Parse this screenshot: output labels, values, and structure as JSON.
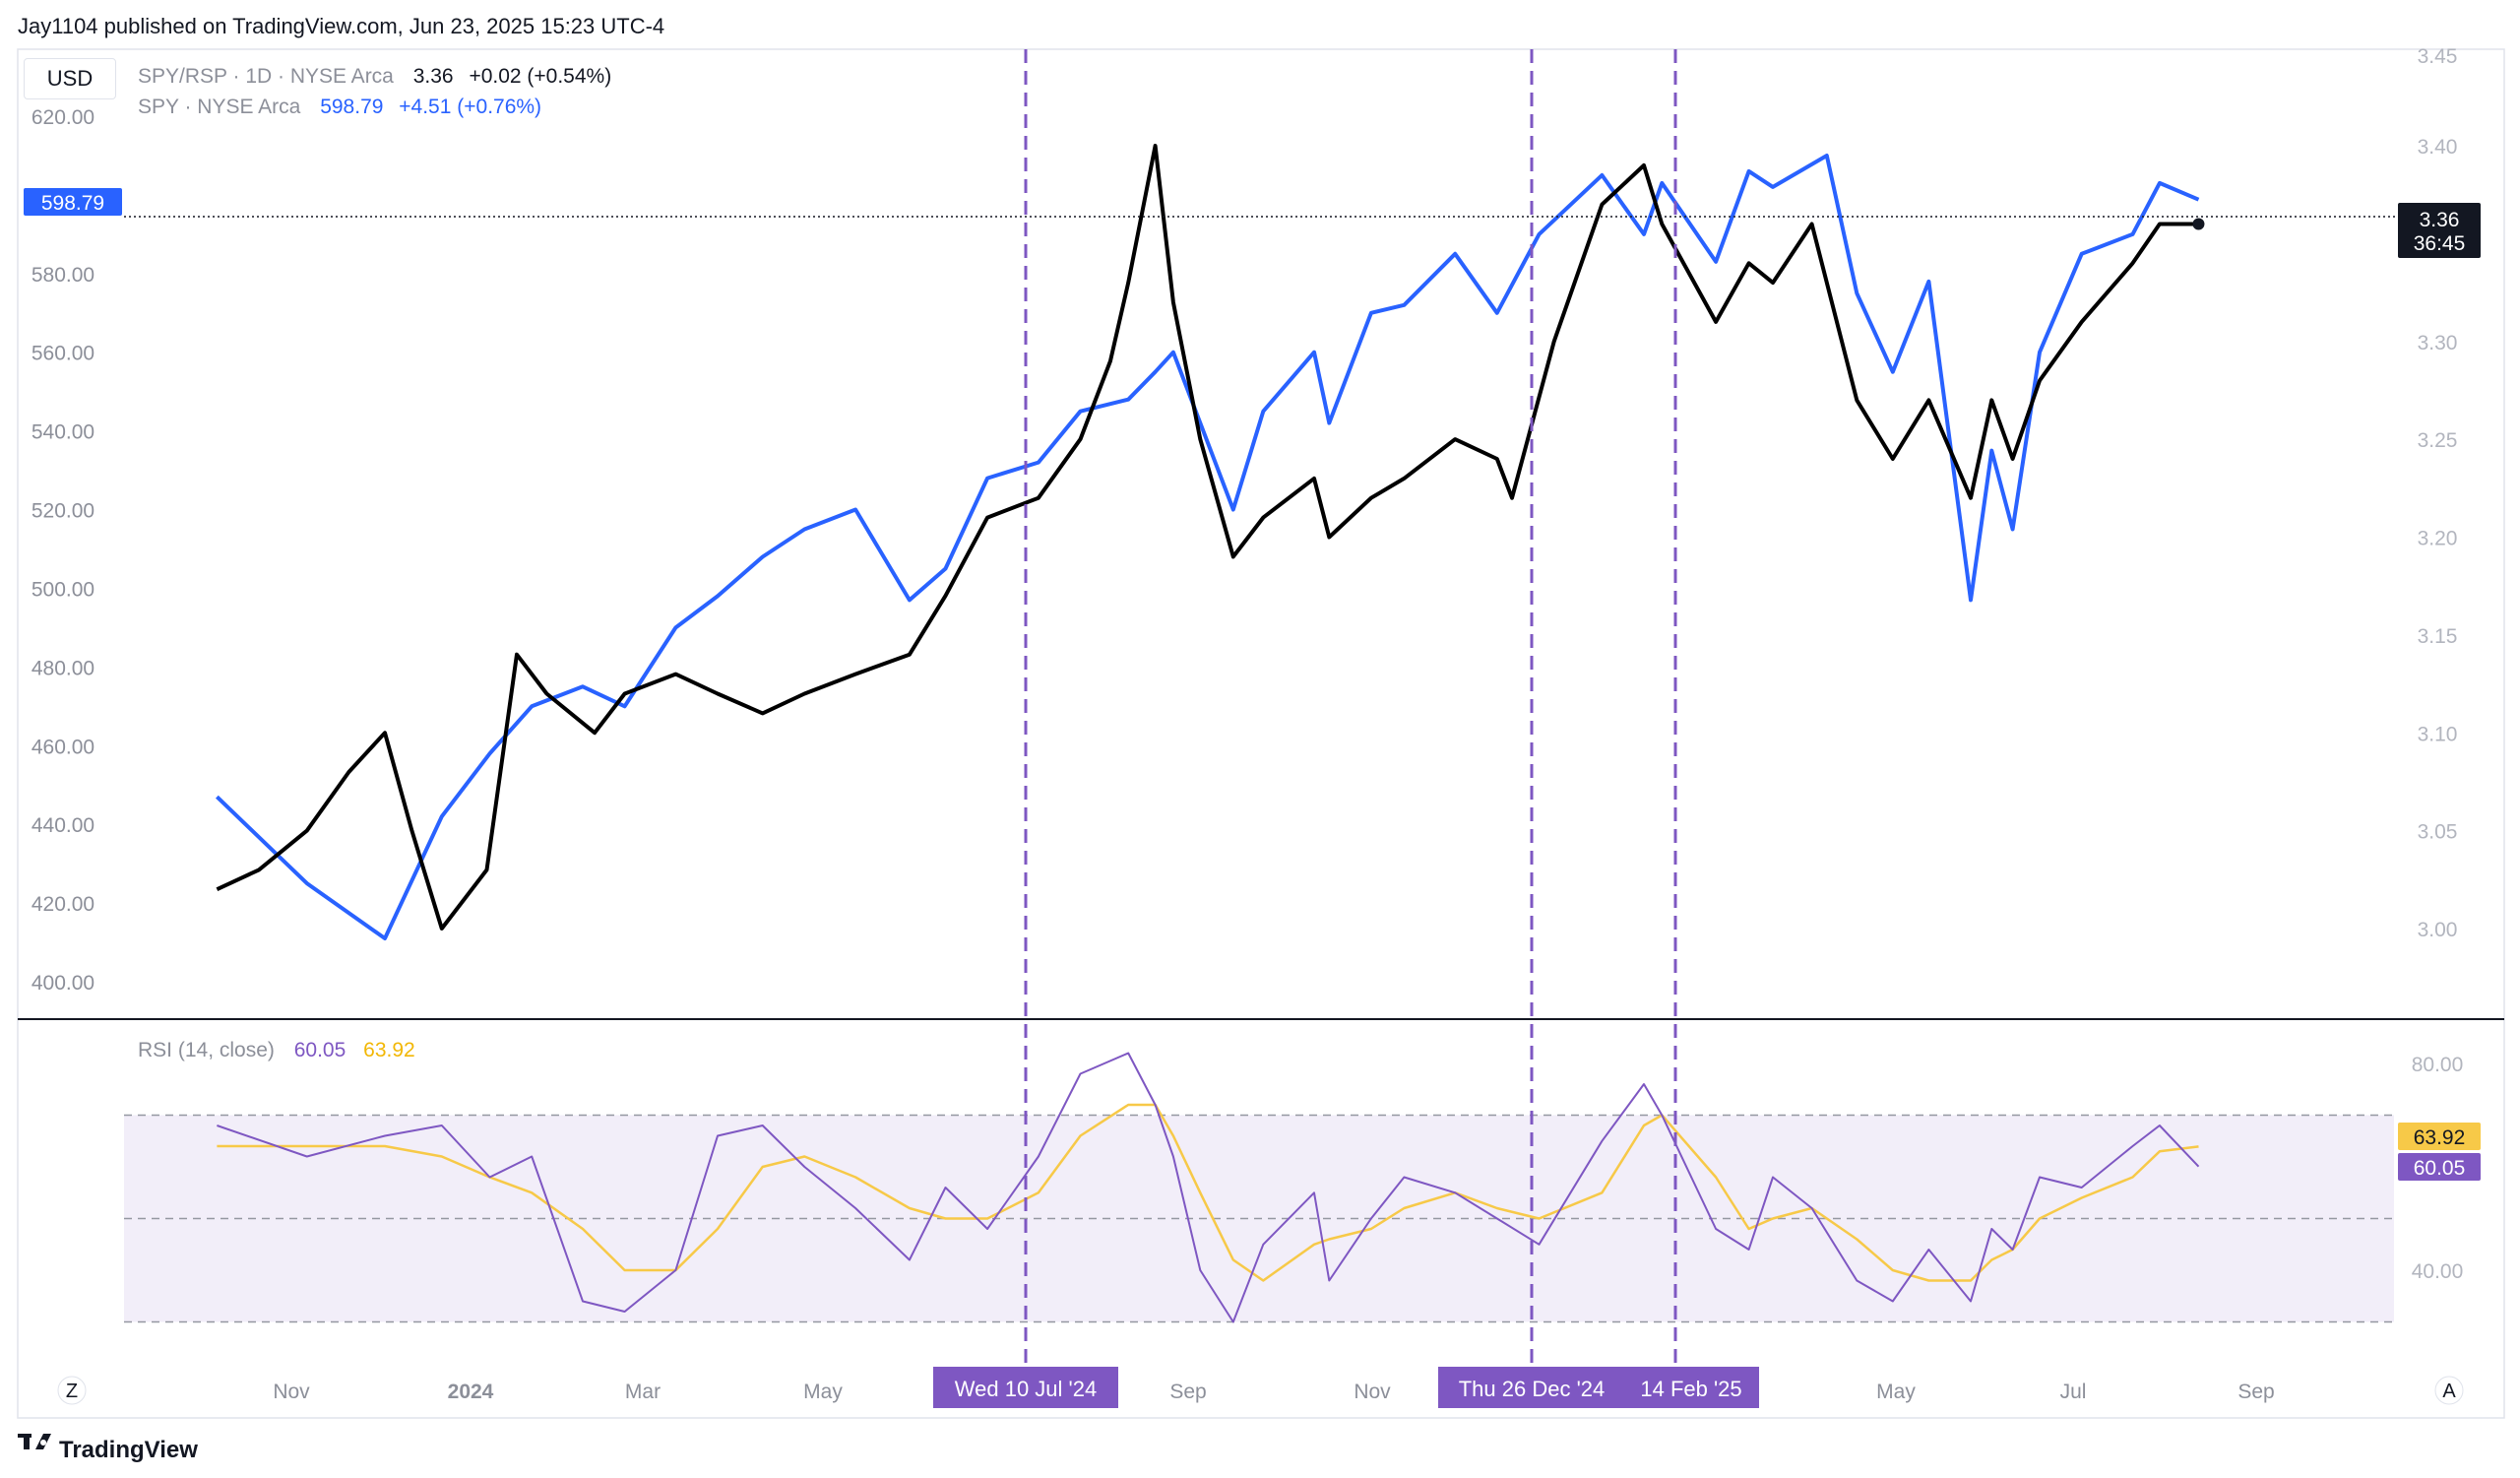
{
  "header": {
    "publisher": "Jay1104 published on TradingView.com, Jun 23, 2025 15:23 UTC-4"
  },
  "currency_button": "USD",
  "legend": {
    "main_symbol": "SPY/RSP · 1D · NYSE Arca",
    "main_value": "3.36",
    "main_change": "+0.02 (+0.54%)",
    "overlay_symbol": "SPY · NYSE Arca",
    "overlay_value": "598.79",
    "overlay_change": "+4.51 (+0.76%)"
  },
  "rsi_legend": {
    "title": "RSI (14, close)",
    "rsi_value": "60.05",
    "ma_value": "63.92"
  },
  "price_tag_left": "598.79",
  "price_tag_right": {
    "value": "3.36",
    "countdown": "36:45"
  },
  "rsi_tags": {
    "ma": "63.92",
    "rsi": "60.05"
  },
  "date_markers": [
    "Wed 10 Jul '24",
    "Thu 26 Dec '24",
    "14 Feb '25"
  ],
  "footer": {
    "brand": "TradingView"
  },
  "nav_buttons": {
    "left": "Z",
    "right": "A"
  },
  "colors": {
    "spy": "#2962ff",
    "ratio": "#000000",
    "rsi": "#7e57c2",
    "rsi_ma": "#f7c948",
    "marker": "#7e57c2",
    "marker_label_bg": "#7e57c2",
    "rsi_band": "#ede7f6"
  },
  "chart_data": [
    {
      "type": "line",
      "title": "SPY/RSP · 1D · NYSE Arca",
      "left_axis_ticks": [
        "620.00",
        "580.00",
        "560.00",
        "540.00",
        "520.00",
        "500.00",
        "480.00",
        "460.00",
        "440.00",
        "420.00",
        "400.00"
      ],
      "right_axis_ticks": [
        "3.45",
        "3.40",
        "3.30",
        "3.25",
        "3.20",
        "3.15",
        "3.10",
        "3.05",
        "3.00"
      ],
      "x_ticks": [
        "Nov",
        "2024",
        "Mar",
        "May",
        "Sep",
        "Nov",
        "May",
        "Jul",
        "Sep"
      ],
      "x_range": [
        "Aug '23",
        "Oct '25"
      ],
      "left_ylim": [
        392,
        630
      ],
      "right_ylim": [
        2.955,
        3.455
      ],
      "series": [
        {
          "name": "SPY · NYSE Arca",
          "axis": "left",
          "x": [
            "2023-09-01",
            "2023-10-01",
            "2023-10-27",
            "2023-11-15",
            "2023-12-01",
            "2023-12-15",
            "2024-01-01",
            "2024-01-15",
            "2024-02-01",
            "2024-02-15",
            "2024-03-01",
            "2024-03-15",
            "2024-04-01",
            "2024-04-19",
            "2024-05-01",
            "2024-05-15",
            "2024-06-01",
            "2024-06-15",
            "2024-07-01",
            "2024-07-10",
            "2024-07-16",
            "2024-07-25",
            "2024-08-05",
            "2024-08-15",
            "2024-09-01",
            "2024-09-06",
            "2024-09-20",
            "2024-10-01",
            "2024-10-18",
            "2024-11-01",
            "2024-11-15",
            "2024-12-06",
            "2024-12-20",
            "2024-12-26",
            "2025-01-13",
            "2025-01-24",
            "2025-02-01",
            "2025-02-19",
            "2025-03-01",
            "2025-03-13",
            "2025-03-25",
            "2025-04-08",
            "2025-04-15",
            "2025-04-22",
            "2025-05-01",
            "2025-05-15",
            "2025-06-01",
            "2025-06-10",
            "2025-06-23"
          ],
          "values": [
            447,
            425,
            411,
            442,
            458,
            470,
            475,
            470,
            490,
            498,
            508,
            515,
            520,
            497,
            505,
            528,
            532,
            545,
            548,
            555,
            560,
            542,
            520,
            545,
            560,
            542,
            570,
            572,
            585,
            570,
            590,
            605,
            590,
            603,
            583,
            606,
            602,
            610,
            575,
            555,
            578,
            497,
            535,
            515,
            560,
            585,
            590,
            603,
            598.79
          ]
        },
        {
          "name": "SPY/RSP · 1D · NYSE Arca",
          "axis": "right",
          "x": [
            "2023-09-01",
            "2023-09-15",
            "2023-10-01",
            "2023-10-15",
            "2023-10-27",
            "2023-11-05",
            "2023-11-15",
            "2023-11-30",
            "2023-12-10",
            "2023-12-20",
            "2024-01-05",
            "2024-01-15",
            "2024-02-01",
            "2024-02-15",
            "2024-03-01",
            "2024-03-15",
            "2024-04-01",
            "2024-04-19",
            "2024-05-01",
            "2024-05-15",
            "2024-06-01",
            "2024-06-15",
            "2024-06-25",
            "2024-07-01",
            "2024-07-10",
            "2024-07-16",
            "2024-07-25",
            "2024-08-05",
            "2024-08-15",
            "2024-09-01",
            "2024-09-06",
            "2024-09-20",
            "2024-10-01",
            "2024-10-18",
            "2024-11-01",
            "2024-11-06",
            "2024-11-20",
            "2024-12-06",
            "2024-12-20",
            "2024-12-26",
            "2025-01-13",
            "2025-01-24",
            "2025-02-01",
            "2025-02-14",
            "2025-03-01",
            "2025-03-13",
            "2025-03-25",
            "2025-04-08",
            "2025-04-15",
            "2025-04-22",
            "2025-05-01",
            "2025-05-15",
            "2025-06-01",
            "2025-06-10",
            "2025-06-23"
          ],
          "values": [
            3.02,
            3.03,
            3.05,
            3.08,
            3.1,
            3.05,
            3.0,
            3.03,
            3.14,
            3.12,
            3.1,
            3.12,
            3.13,
            3.12,
            3.11,
            3.12,
            3.13,
            3.14,
            3.17,
            3.21,
            3.22,
            3.25,
            3.29,
            3.33,
            3.4,
            3.32,
            3.25,
            3.19,
            3.21,
            3.23,
            3.2,
            3.22,
            3.23,
            3.25,
            3.24,
            3.22,
            3.3,
            3.37,
            3.39,
            3.36,
            3.31,
            3.34,
            3.33,
            3.36,
            3.27,
            3.24,
            3.27,
            3.22,
            3.27,
            3.24,
            3.28,
            3.31,
            3.34,
            3.36,
            3.36
          ]
        }
      ]
    },
    {
      "type": "line",
      "title": "RSI (14, close)",
      "right_axis_ticks": [
        "80.00",
        "40.00"
      ],
      "ylim": [
        25,
        85
      ],
      "bands": [
        70,
        50,
        30
      ],
      "series": [
        {
          "name": "RSI",
          "x": [
            "2023-09-01",
            "2023-10-01",
            "2023-10-27",
            "2023-11-15",
            "2023-12-01",
            "2023-12-15",
            "2024-01-01",
            "2024-01-15",
            "2024-02-01",
            "2024-02-15",
            "2024-03-01",
            "2024-03-15",
            "2024-04-01",
            "2024-04-19",
            "2024-05-01",
            "2024-05-15",
            "2024-06-01",
            "2024-06-15",
            "2024-07-01",
            "2024-07-10",
            "2024-07-16",
            "2024-07-25",
            "2024-08-05",
            "2024-08-15",
            "2024-09-01",
            "2024-09-06",
            "2024-09-20",
            "2024-10-01",
            "2024-10-18",
            "2024-11-01",
            "2024-11-15",
            "2024-12-06",
            "2024-12-20",
            "2024-12-26",
            "2025-01-13",
            "2025-01-24",
            "2025-02-01",
            "2025-02-14",
            "2025-03-01",
            "2025-03-13",
            "2025-03-25",
            "2025-04-08",
            "2025-04-15",
            "2025-04-22",
            "2025-05-01",
            "2025-05-15",
            "2025-06-01",
            "2025-06-10",
            "2025-06-23"
          ],
          "values": [
            68,
            62,
            66,
            68,
            58,
            62,
            34,
            32,
            40,
            66,
            68,
            60,
            52,
            42,
            56,
            48,
            62,
            78,
            82,
            72,
            62,
            40,
            30,
            45,
            55,
            38,
            50,
            58,
            55,
            50,
            45,
            65,
            76,
            70,
            48,
            44,
            58,
            52,
            38,
            34,
            44,
            34,
            48,
            44,
            58,
            56,
            64,
            68,
            60.05
          ]
        },
        {
          "name": "RSI-based MA",
          "x": [
            "2023-09-01",
            "2023-10-01",
            "2023-10-27",
            "2023-11-15",
            "2023-12-01",
            "2023-12-15",
            "2024-01-01",
            "2024-01-15",
            "2024-02-01",
            "2024-02-15",
            "2024-03-01",
            "2024-03-15",
            "2024-04-01",
            "2024-04-19",
            "2024-05-01",
            "2024-05-15",
            "2024-06-01",
            "2024-06-15",
            "2024-07-01",
            "2024-07-10",
            "2024-07-16",
            "2024-07-25",
            "2024-08-05",
            "2024-08-15",
            "2024-09-01",
            "2024-09-06",
            "2024-09-20",
            "2024-10-01",
            "2024-10-18",
            "2024-11-01",
            "2024-11-15",
            "2024-12-06",
            "2024-12-20",
            "2024-12-26",
            "2025-01-13",
            "2025-01-24",
            "2025-02-01",
            "2025-02-14",
            "2025-03-01",
            "2025-03-13",
            "2025-03-25",
            "2025-04-08",
            "2025-04-15",
            "2025-04-22",
            "2025-05-01",
            "2025-05-15",
            "2025-06-01",
            "2025-06-10",
            "2025-06-23"
          ],
          "values": [
            64,
            64,
            64,
            62,
            58,
            55,
            48,
            40,
            40,
            48,
            60,
            62,
            58,
            52,
            50,
            50,
            55,
            66,
            72,
            72,
            66,
            55,
            42,
            38,
            45,
            46,
            48,
            52,
            55,
            52,
            50,
            55,
            68,
            70,
            58,
            48,
            50,
            52,
            46,
            40,
            38,
            38,
            42,
            44,
            50,
            54,
            58,
            63,
            63.92
          ]
        }
      ]
    }
  ]
}
